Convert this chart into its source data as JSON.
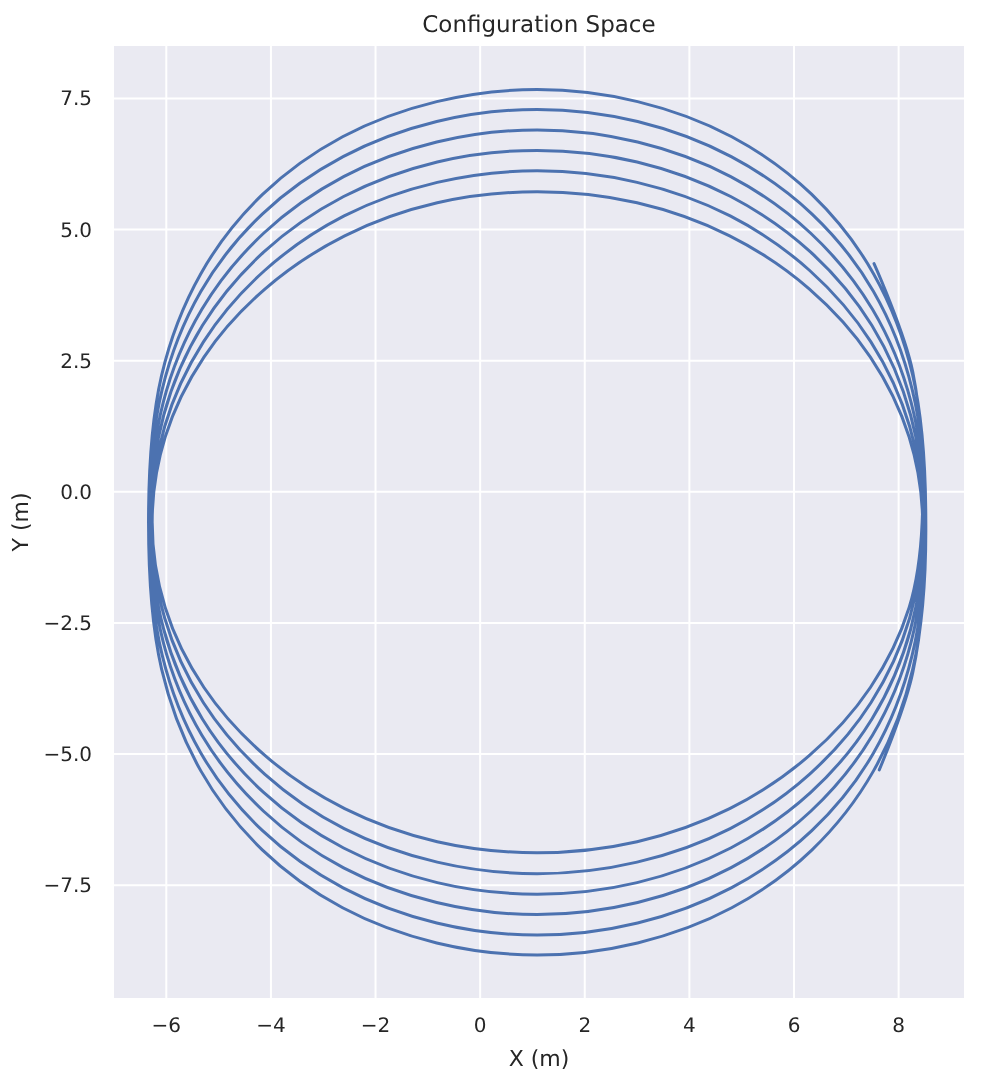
{
  "chart_data": {
    "type": "line",
    "title": "Configuration Space",
    "xlabel": "X (m)",
    "ylabel": "Y (m)",
    "x": [
      7.53,
      8.27,
      8.45,
      8.2,
      7.46,
      6.29,
      4.77,
      3.0,
      1.09,
      -0.82,
      -2.59,
      -4.11,
      -5.28,
      -6.02,
      -6.27,
      -6.02,
      -5.28,
      -4.11,
      -2.59,
      -0.82,
      1.09,
      3.0,
      4.77,
      6.29,
      7.46,
      8.2,
      8.46,
      8.21,
      7.47,
      6.3,
      4.78,
      3.0,
      1.09,
      -0.82,
      -2.6,
      -4.12,
      -5.29,
      -6.03,
      -6.28,
      -6.03,
      -5.29,
      -4.12,
      -2.6,
      -0.82,
      1.09,
      3.0,
      4.78,
      6.3,
      7.47,
      8.21,
      8.48,
      8.23,
      7.49,
      6.32,
      4.79,
      3.0,
      1.09,
      -0.82,
      -2.61,
      -4.14,
      -5.31,
      -6.05,
      -6.3,
      -6.05,
      -5.31,
      -4.14,
      -2.61,
      -0.82,
      1.09,
      3.0,
      4.79,
      6.32,
      7.49,
      8.23,
      8.49,
      8.24,
      7.5,
      6.32,
      4.79,
      3.01,
      1.09,
      -0.83,
      -2.61,
      -4.14,
      -5.32,
      -6.06,
      -6.31,
      -6.06,
      -5.32,
      -4.14,
      -2.61,
      -0.83,
      1.09,
      3.01,
      4.79,
      6.32,
      7.5,
      8.24,
      8.51,
      8.26,
      7.52,
      6.34,
      4.8,
      3.01,
      1.09,
      -0.83,
      -2.62,
      -4.16,
      -5.34,
      -6.08,
      -6.33,
      -6.08,
      -5.34,
      -4.16,
      -2.62,
      -0.83,
      1.09,
      3.01,
      4.8,
      6.34,
      7.52,
      8.26,
      8.52,
      8.27,
      7.52,
      6.34,
      4.81,
      3.01,
      1.09,
      -0.83,
      -2.63,
      -4.16,
      -5.34,
      -6.09,
      -6.34,
      -6.09,
      -5.34,
      -4.16,
      -2.63,
      -0.83,
      1.09,
      3.01,
      4.81,
      6.34,
      7.52,
      8.27,
      8.52,
      8.27,
      7.63
    ],
    "series": [
      {
        "color": "#4c72b0",
        "values": [
          4.35,
          2.29,
          -0.58,
          -2.21,
          -3.73,
          -5.03,
          -6.04,
          -6.67,
          -6.88,
          -6.67,
          -6.04,
          -5.03,
          -3.73,
          -2.21,
          -0.58,
          1.05,
          2.57,
          3.87,
          4.88,
          5.51,
          5.72,
          5.51,
          4.88,
          3.87,
          2.57,
          1.05,
          -0.58,
          -2.41,
          -4.02,
          -5.38,
          -6.42,
          -7.06,
          -7.28,
          -7.06,
          -6.42,
          -5.38,
          -4.02,
          -2.41,
          -0.58,
          1.25,
          2.86,
          4.22,
          5.26,
          5.9,
          6.12,
          5.9,
          5.26,
          4.22,
          2.86,
          1.25,
          -0.58,
          -2.62,
          -4.33,
          -5.73,
          -6.79,
          -7.45,
          -7.67,
          -7.45,
          -6.79,
          -5.73,
          -4.33,
          -2.62,
          -0.58,
          1.46,
          3.17,
          4.57,
          5.63,
          6.29,
          6.51,
          6.29,
          5.63,
          4.57,
          3.17,
          1.46,
          -0.58,
          -2.86,
          -4.64,
          -6.09,
          -7.17,
          -7.83,
          -8.06,
          -7.83,
          -7.17,
          -6.09,
          -4.64,
          -2.86,
          -0.58,
          1.7,
          3.48,
          4.93,
          6.01,
          6.67,
          6.9,
          6.67,
          6.01,
          4.93,
          3.48,
          1.7,
          -0.58,
          -3.11,
          -4.98,
          -6.46,
          -7.55,
          -8.22,
          -8.45,
          -8.22,
          -7.55,
          -6.46,
          -4.98,
          -3.11,
          -0.58,
          1.95,
          3.82,
          5.3,
          6.39,
          7.06,
          7.29,
          7.06,
          6.39,
          5.3,
          3.82,
          1.95,
          -0.58,
          -3.38,
          -5.32,
          -6.83,
          -7.93,
          -8.6,
          -8.83,
          -8.6,
          -7.93,
          -6.83,
          -5.32,
          -3.38,
          -0.58,
          2.22,
          4.16,
          5.67,
          6.77,
          7.44,
          7.67,
          7.44,
          6.77,
          5.67,
          4.16,
          2.22,
          -0.58,
          -3.45,
          -5.3
        ]
      }
    ],
    "xlim": [
      -7.0,
      9.25
    ],
    "ylim": [
      -9.65,
      8.5
    ],
    "xticks": [
      {
        "value": -6,
        "label": "−6"
      },
      {
        "value": -4,
        "label": "−4"
      },
      {
        "value": -2,
        "label": "−2"
      },
      0,
      2,
      4,
      6,
      8
    ],
    "yticks": [
      {
        "value": -7.5,
        "label": "−7.5"
      },
      {
        "value": -5,
        "label": "−5.0"
      },
      {
        "value": -2.5,
        "label": "−2.5"
      },
      {
        "value": 0,
        "label": "0.0"
      },
      2.5,
      {
        "value": 5,
        "label": "5.0"
      },
      7.5
    ],
    "grid": true
  }
}
